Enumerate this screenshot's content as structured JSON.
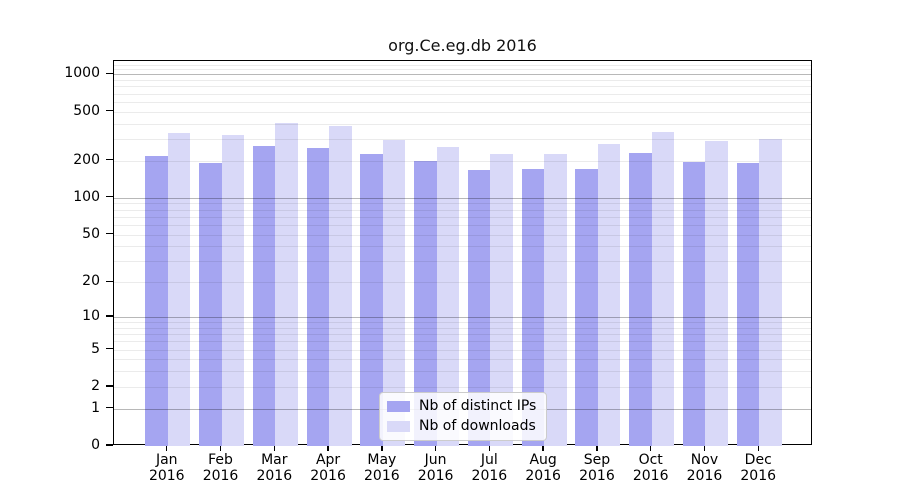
{
  "title": "org.Ce.eg.db 2016",
  "legend": {
    "items": [
      {
        "label": "Nb of distinct IPs",
        "color": "#a5a5f1"
      },
      {
        "label": "Nb of downloads",
        "color": "#d9d9f8"
      }
    ]
  },
  "chart_data": {
    "type": "bar",
    "title": "org.Ce.eg.db 2016",
    "categories": [
      {
        "month": "Jan",
        "year": "2016"
      },
      {
        "month": "Feb",
        "year": "2016"
      },
      {
        "month": "Mar",
        "year": "2016"
      },
      {
        "month": "Apr",
        "year": "2016"
      },
      {
        "month": "May",
        "year": "2016"
      },
      {
        "month": "Jun",
        "year": "2016"
      },
      {
        "month": "Jul",
        "year": "2016"
      },
      {
        "month": "Aug",
        "year": "2016"
      },
      {
        "month": "Sep",
        "year": "2016"
      },
      {
        "month": "Oct",
        "year": "2016"
      },
      {
        "month": "Nov",
        "year": "2016"
      },
      {
        "month": "Dec",
        "year": "2016"
      }
    ],
    "series": [
      {
        "name": "Nb of distinct IPs",
        "color": "#a5a5f1",
        "values": [
          218,
          192,
          264,
          254,
          225,
          199,
          167,
          172,
          173,
          232,
          194,
          192
        ]
      },
      {
        "name": "Nb of downloads",
        "color": "#d9d9f8",
        "values": [
          333,
          322,
          405,
          382,
          294,
          258,
          228,
          226,
          274,
          343,
          289,
          301
        ]
      }
    ],
    "xlabel": "",
    "ylabel": "",
    "yscale": "log1p",
    "yticks": [
      1000,
      500,
      200,
      100,
      50,
      20,
      10,
      5,
      2,
      1,
      0
    ],
    "ylim": [
      0,
      1280
    ],
    "grid": {
      "on": true,
      "major_at": [
        1,
        10,
        100,
        1000
      ],
      "minor": true
    },
    "legend_position": "lower-center-inside"
  }
}
